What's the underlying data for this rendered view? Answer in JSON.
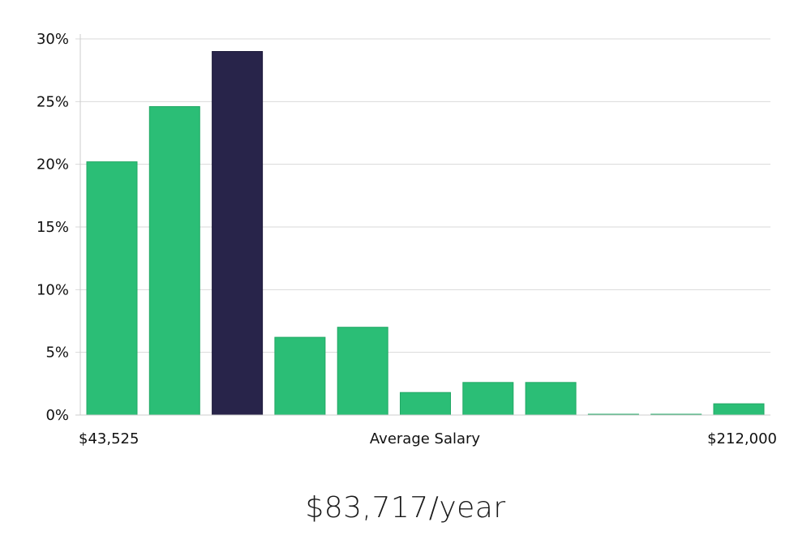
{
  "chart_data": {
    "type": "bar",
    "title": "",
    "xlabel": "Average Salary",
    "ylabel": "",
    "x_min_label": "$43,525",
    "x_max_label": "$212,000",
    "ylim": [
      0,
      30
    ],
    "y_ticks": [
      0,
      5,
      10,
      15,
      20,
      25,
      30
    ],
    "y_tick_suffix": "%",
    "grid": true,
    "bins": 11,
    "values": [
      20.2,
      24.6,
      29.0,
      6.2,
      7.0,
      1.8,
      2.6,
      2.6,
      0.05,
      0.05,
      0.9
    ],
    "highlight_index": 2,
    "colors": {
      "bar": "#2bbe76",
      "highlight": "#28244a",
      "grid": "#d9d9d9",
      "axis": "#cccccc"
    }
  },
  "summary": {
    "average_salary": "$83,717/year"
  }
}
